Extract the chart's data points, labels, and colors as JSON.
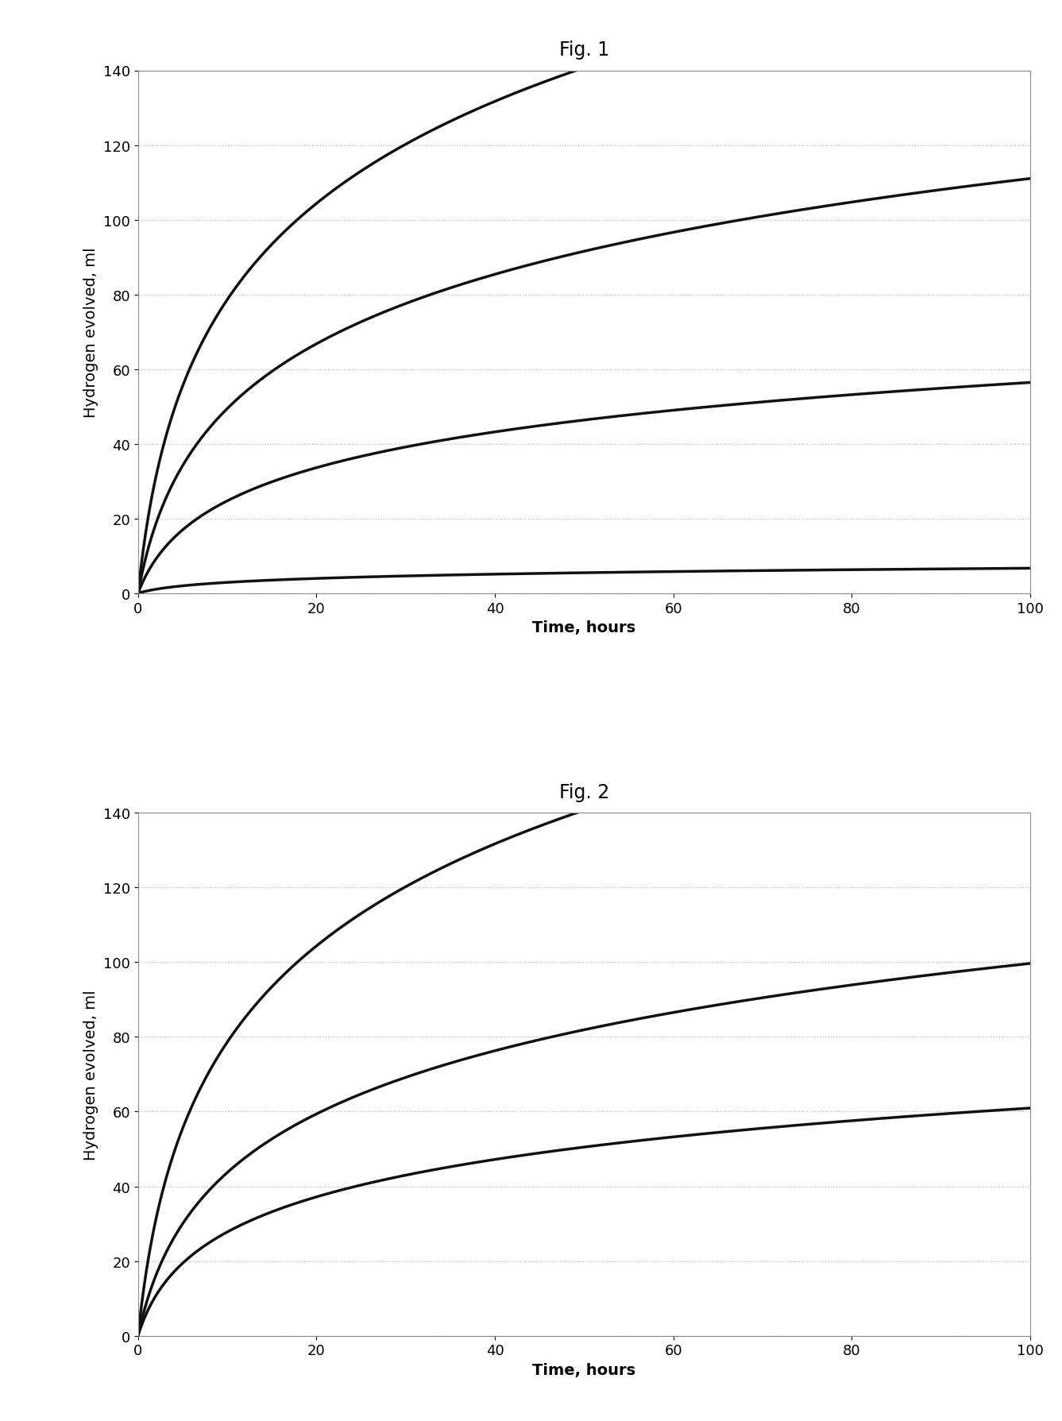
{
  "fig1_title": "Fig. 1",
  "fig2_title": "Fig. 2",
  "xlabel": "Time, hours",
  "ylabel": "Hydrogen evolved, ml",
  "xlim": [
    0,
    100
  ],
  "ylim": [
    0,
    140
  ],
  "xticks": [
    0,
    20,
    40,
    60,
    80,
    100
  ],
  "yticks": [
    0,
    20,
    40,
    60,
    80,
    100,
    120,
    140
  ],
  "fig1_curves": [
    {
      "a": 42.0,
      "k": 0.55
    },
    {
      "a": 29.0,
      "k": 0.45
    },
    {
      "a": 15.0,
      "k": 0.42
    },
    {
      "a": 1.8,
      "k": 0.4
    }
  ],
  "fig2_curves": [
    {
      "a": 42.0,
      "k": 0.55
    },
    {
      "a": 26.5,
      "k": 0.42
    },
    {
      "a": 15.5,
      "k": 0.5
    }
  ],
  "line_color": "#111111",
  "line_width": 2.5,
  "grid_color": "#bbbbbb",
  "background_color": "#ffffff",
  "title_fontsize": 17,
  "label_fontsize": 14,
  "tick_fontsize": 13
}
